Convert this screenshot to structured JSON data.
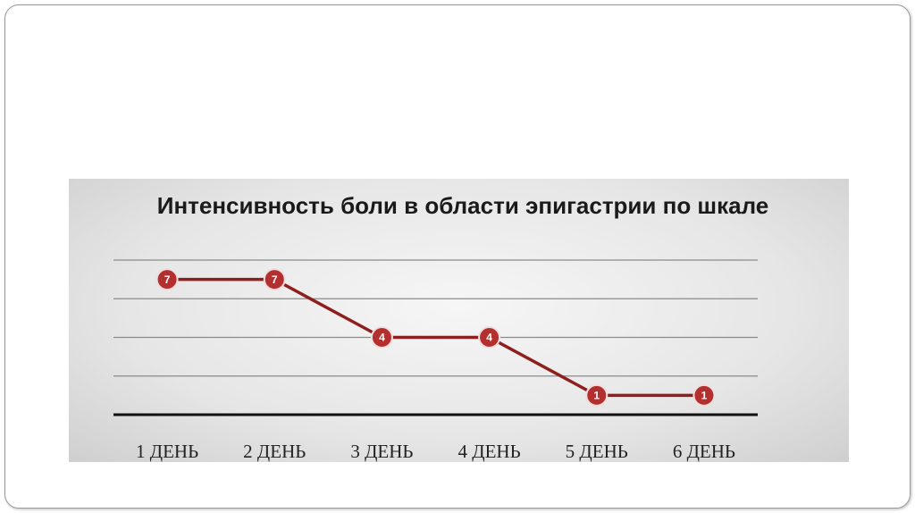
{
  "chart_data": {
    "type": "line",
    "title": "Интенсивность боли в области эпигастрии по шкале",
    "categories": [
      "1 ДЕНЬ",
      "2 ДЕНЬ",
      "3 ДЕНЬ",
      "4 ДЕНЬ",
      "5 ДЕНЬ",
      "6 ДЕНЬ"
    ],
    "values": [
      7,
      7,
      4,
      4,
      1,
      1
    ],
    "color": "#8e1f1f",
    "ylim": [
      0,
      8
    ],
    "yticks": [
      0,
      2,
      4,
      6,
      8
    ],
    "grid": true
  }
}
